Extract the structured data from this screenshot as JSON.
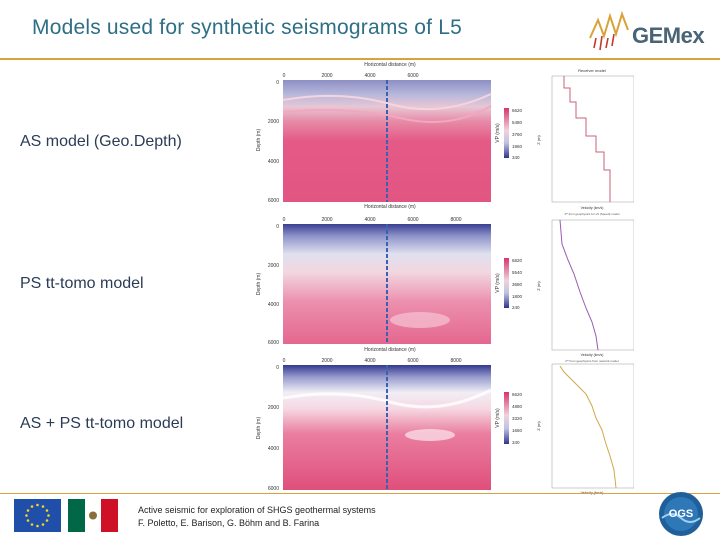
{
  "slide": {
    "title": "Models used for synthetic seismograms of L5"
  },
  "brand": {
    "logo_text": "GEMex",
    "accent_color": "#d9a23a",
    "title_color": "#2f6f86"
  },
  "models": [
    {
      "label": "AS model (Geo.Depth)",
      "top_axis_title": "Horizontal distance (m)",
      "x_ticks": [
        "0",
        "2000",
        "4000",
        "6000"
      ],
      "y_ticks": [
        "0",
        "2000",
        "4000",
        "6000"
      ],
      "y_axis_title": "Depth (m)",
      "colorbar_title": "VP (m/s)",
      "colorbar_ticks": [
        "6620",
        "5480",
        "3760",
        "1960",
        "340"
      ],
      "bottom_axis_title": "Horizontal distance (m)"
    },
    {
      "label": "PS tt-tomo model",
      "x_ticks": [
        "0",
        "2000",
        "4000",
        "6000",
        "8000"
      ],
      "y_ticks": [
        "0",
        "2000",
        "4000",
        "6000"
      ],
      "y_axis_title": "Depth (m)",
      "colorbar_title": "VP (m/s)",
      "colorbar_ticks": [
        "6820",
        "5540",
        "3680",
        "1800",
        "240"
      ],
      "bottom_axis_title": "Horizontal distance (m)"
    },
    {
      "label": "AS + PS tt-tomo model",
      "x_ticks": [
        "0",
        "2000",
        "4000",
        "6000",
        "8000"
      ],
      "y_ticks": [
        "0",
        "2000",
        "4000",
        "6000"
      ],
      "y_axis_title": "Depth (m)",
      "colorbar_title": "VP (m/s)",
      "colorbar_ticks": [
        "6620",
        "4880",
        "3320",
        "1660",
        "340"
      ]
    }
  ],
  "profiles": [
    {
      "title": "Receiver model",
      "x_axis_title": "Velocity (km/s)",
      "y_axis_title": "Z (m)",
      "x_ticks": [
        "0",
        "1",
        "2",
        "3",
        "4",
        "5",
        "6",
        "7"
      ],
      "note": "P* from geophysics for L5 (Speed) model",
      "line_color": "#c9607a"
    },
    {
      "x_axis_title": "Velocity (km/s)",
      "y_axis_title": "Z (m)",
      "x_ticks": [
        "0",
        "1",
        "2",
        "3",
        "4",
        "5",
        "6",
        "7"
      ],
      "note": "P* from geophysics from network model",
      "line_color": "#9a5bb4"
    },
    {
      "x_axis_title": "Velocity (km/s)",
      "y_axis_title": "Z (m)",
      "x_ticks": [
        "0",
        "1",
        "2",
        "3",
        "4",
        "5",
        "6",
        "7"
      ],
      "line_color": "#d1a84a"
    }
  ],
  "footer": {
    "line1": "Active seismic for exploration of SHGS geothermal systems",
    "line2": "F. Poletto, E. Barison, G. Böhm and B. Farina",
    "partner_logo_text": "OGS"
  }
}
